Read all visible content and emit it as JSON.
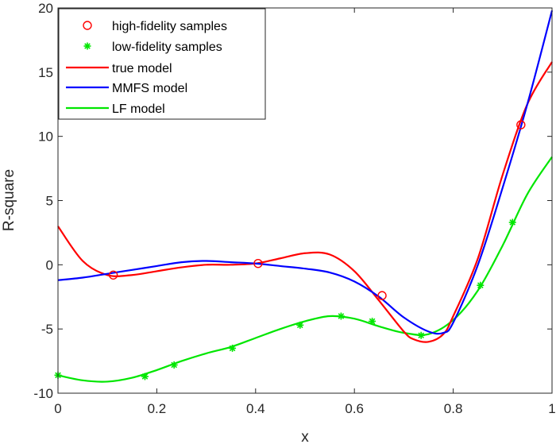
{
  "chart_data": {
    "type": "line",
    "title": "",
    "xlabel": "x",
    "ylabel": "R-square",
    "xlim": [
      0,
      1
    ],
    "ylim": [
      -10,
      20
    ],
    "xticks": [
      0,
      0.2,
      0.4,
      0.6,
      0.8,
      1
    ],
    "xtick_labels": [
      "0",
      "0.2",
      "0.4",
      "0.6",
      "0.8",
      "1"
    ],
    "yticks": [
      -10,
      -5,
      0,
      5,
      10,
      15,
      20
    ],
    "ytick_labels": [
      "-10",
      "-5",
      "0",
      "5",
      "10",
      "15",
      "20"
    ],
    "grid": false,
    "legend_position": "top-left",
    "series": [
      {
        "name": "true model",
        "kind": "line",
        "color": "#ff0000",
        "x": [
          0,
          0.05,
          0.1,
          0.15,
          0.2,
          0.25,
          0.3,
          0.35,
          0.4,
          0.45,
          0.5,
          0.55,
          0.6,
          0.65,
          0.7,
          0.72,
          0.75,
          0.78,
          0.8,
          0.85,
          0.9,
          0.95,
          1.0
        ],
        "y": [
          3.0,
          0.3,
          -0.8,
          -0.8,
          -0.5,
          -0.2,
          0.0,
          0.0,
          0.1,
          0.5,
          0.9,
          0.8,
          -0.5,
          -2.8,
          -5.2,
          -5.8,
          -6.0,
          -5.4,
          -4.0,
          0.5,
          7.0,
          12.5,
          15.8
        ]
      },
      {
        "name": "MMFS model",
        "kind": "line",
        "color": "#0000ff",
        "x": [
          0,
          0.05,
          0.1,
          0.15,
          0.2,
          0.25,
          0.3,
          0.35,
          0.4,
          0.45,
          0.5,
          0.55,
          0.6,
          0.65,
          0.7,
          0.75,
          0.78,
          0.8,
          0.85,
          0.9,
          0.95,
          1.0
        ],
        "y": [
          -1.2,
          -1.0,
          -0.7,
          -0.4,
          -0.1,
          0.2,
          0.3,
          0.2,
          0.1,
          -0.1,
          -0.3,
          -0.6,
          -1.3,
          -2.5,
          -4.1,
          -5.2,
          -5.3,
          -4.5,
          0.0,
          6.0,
          12.5,
          19.8
        ]
      },
      {
        "name": "LF model",
        "kind": "line",
        "color": "#00e600",
        "x": [
          0,
          0.05,
          0.1,
          0.15,
          0.2,
          0.25,
          0.3,
          0.35,
          0.4,
          0.45,
          0.5,
          0.55,
          0.6,
          0.65,
          0.7,
          0.75,
          0.8,
          0.85,
          0.9,
          0.95,
          1.0
        ],
        "y": [
          -8.6,
          -9.0,
          -9.1,
          -8.8,
          -8.2,
          -7.5,
          -6.9,
          -6.4,
          -5.7,
          -5.0,
          -4.4,
          -4.0,
          -4.2,
          -4.8,
          -5.3,
          -5.4,
          -4.3,
          -2.0,
          1.5,
          5.5,
          8.4
        ]
      },
      {
        "name": "high-fidelity samples",
        "kind": "marker-circle",
        "color": "#ff0000",
        "x": [
          0.112,
          0.405,
          0.656,
          0.937
        ],
        "y": [
          -0.8,
          0.1,
          -2.4,
          10.9
        ]
      },
      {
        "name": "low-fidelity samples",
        "kind": "marker-star",
        "color": "#00e600",
        "x": [
          0.0,
          0.176,
          0.235,
          0.353,
          0.49,
          0.573,
          0.636,
          0.735,
          0.855,
          0.92
        ],
        "y": [
          -8.6,
          -8.7,
          -7.8,
          -6.5,
          -4.7,
          -4.0,
          -4.4,
          -5.5,
          -1.6,
          3.3
        ]
      }
    ],
    "legend": [
      {
        "label": "high-fidelity samples",
        "symbol": "circle",
        "color": "#ff0000"
      },
      {
        "label": "low-fidelity samples",
        "symbol": "star",
        "color": "#00e600"
      },
      {
        "label": "true model",
        "symbol": "line",
        "color": "#ff0000"
      },
      {
        "label": "MMFS model",
        "symbol": "line",
        "color": "#0000ff"
      },
      {
        "label": "LF model",
        "symbol": "line",
        "color": "#00e600"
      }
    ]
  }
}
